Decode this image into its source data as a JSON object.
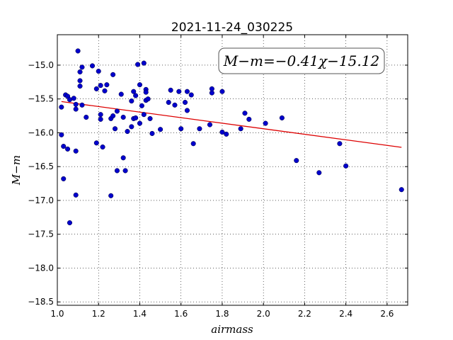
{
  "chart_data": {
    "type": "scatter",
    "title": "2021-11-24_030225",
    "xlabel": "airmass",
    "ylabel": "M−m",
    "annotation": "M−m=−0.41χ−15.12",
    "xlim": [
      1.0,
      2.7
    ],
    "ylim": [
      -18.55,
      -14.55
    ],
    "ylim_note": "y axis increases downward",
    "x_ticks": [
      1.0,
      1.2,
      1.4,
      1.6,
      1.8,
      2.0,
      2.2,
      2.4,
      2.6
    ],
    "x_tick_labels": [
      "1.0",
      "1.2",
      "1.4",
      "1.6",
      "1.8",
      "2.0",
      "2.2",
      "2.4",
      "2.6"
    ],
    "y_ticks": [
      -15.0,
      -15.5,
      -16.0,
      -16.5,
      -17.0,
      -17.5,
      -18.0,
      -18.5
    ],
    "y_tick_labels": [
      "−15.0",
      "−15.5",
      "−16.0",
      "−16.5",
      "−17.0",
      "−17.5",
      "−18.0",
      "−18.5"
    ],
    "grid": true,
    "point_color": "#0000cc",
    "fit_color": "#dd0000",
    "fit": {
      "slope": -0.41,
      "intercept": -15.12,
      "x_range": [
        1.02,
        2.67
      ]
    },
    "points": [
      {
        "x": 1.02,
        "y": -15.62
      },
      {
        "x": 1.02,
        "y": -16.03
      },
      {
        "x": 1.03,
        "y": -16.2
      },
      {
        "x": 1.03,
        "y": -16.68
      },
      {
        "x": 1.04,
        "y": -15.44
      },
      {
        "x": 1.05,
        "y": -15.46
      },
      {
        "x": 1.05,
        "y": -16.24
      },
      {
        "x": 1.06,
        "y": -17.33
      },
      {
        "x": 1.06,
        "y": -15.51
      },
      {
        "x": 1.08,
        "y": -15.49
      },
      {
        "x": 1.09,
        "y": -15.58
      },
      {
        "x": 1.09,
        "y": -15.65
      },
      {
        "x": 1.09,
        "y": -16.27
      },
      {
        "x": 1.09,
        "y": -16.92
      },
      {
        "x": 1.1,
        "y": -14.79
      },
      {
        "x": 1.11,
        "y": -15.23
      },
      {
        "x": 1.11,
        "y": -15.31
      },
      {
        "x": 1.11,
        "y": -15.1
      },
      {
        "x": 1.12,
        "y": -15.03
      },
      {
        "x": 1.12,
        "y": -15.59
      },
      {
        "x": 1.14,
        "y": -15.77
      },
      {
        "x": 1.17,
        "y": -15.01
      },
      {
        "x": 1.19,
        "y": -15.35
      },
      {
        "x": 1.19,
        "y": -16.15
      },
      {
        "x": 1.2,
        "y": -15.09
      },
      {
        "x": 1.21,
        "y": -15.3
      },
      {
        "x": 1.21,
        "y": -15.73
      },
      {
        "x": 1.21,
        "y": -15.8
      },
      {
        "x": 1.22,
        "y": -16.21
      },
      {
        "x": 1.23,
        "y": -15.38
      },
      {
        "x": 1.24,
        "y": -15.29
      },
      {
        "x": 1.26,
        "y": -16.93
      },
      {
        "x": 1.26,
        "y": -15.79
      },
      {
        "x": 1.27,
        "y": -15.75
      },
      {
        "x": 1.27,
        "y": -15.14
      },
      {
        "x": 1.28,
        "y": -15.94
      },
      {
        "x": 1.29,
        "y": -16.56
      },
      {
        "x": 1.29,
        "y": -15.68
      },
      {
        "x": 1.31,
        "y": -15.43
      },
      {
        "x": 1.32,
        "y": -16.37
      },
      {
        "x": 1.32,
        "y": -15.77
      },
      {
        "x": 1.33,
        "y": -16.56
      },
      {
        "x": 1.34,
        "y": -15.98
      },
      {
        "x": 1.36,
        "y": -15.91
      },
      {
        "x": 1.36,
        "y": -15.53
      },
      {
        "x": 1.37,
        "y": -15.39
      },
      {
        "x": 1.37,
        "y": -15.79
      },
      {
        "x": 1.38,
        "y": -15.45
      },
      {
        "x": 1.38,
        "y": -15.78
      },
      {
        "x": 1.39,
        "y": -14.99
      },
      {
        "x": 1.4,
        "y": -15.29
      },
      {
        "x": 1.4,
        "y": -15.86
      },
      {
        "x": 1.41,
        "y": -15.6
      },
      {
        "x": 1.42,
        "y": -15.73
      },
      {
        "x": 1.42,
        "y": -14.97
      },
      {
        "x": 1.43,
        "y": -15.36
      },
      {
        "x": 1.43,
        "y": -15.4
      },
      {
        "x": 1.43,
        "y": -15.52
      },
      {
        "x": 1.44,
        "y": -15.5
      },
      {
        "x": 1.45,
        "y": -15.79
      },
      {
        "x": 1.46,
        "y": -16.01
      },
      {
        "x": 1.5,
        "y": -15.95
      },
      {
        "x": 1.54,
        "y": -15.55
      },
      {
        "x": 1.55,
        "y": -15.37
      },
      {
        "x": 1.57,
        "y": -15.59
      },
      {
        "x": 1.59,
        "y": -15.39
      },
      {
        "x": 1.6,
        "y": -15.94
      },
      {
        "x": 1.62,
        "y": -15.55
      },
      {
        "x": 1.63,
        "y": -15.39
      },
      {
        "x": 1.63,
        "y": -15.67
      },
      {
        "x": 1.65,
        "y": -15.44
      },
      {
        "x": 1.66,
        "y": -16.16
      },
      {
        "x": 1.69,
        "y": -15.94
      },
      {
        "x": 1.74,
        "y": -15.88
      },
      {
        "x": 1.75,
        "y": -15.41
      },
      {
        "x": 1.75,
        "y": -15.35
      },
      {
        "x": 1.8,
        "y": -15.39
      },
      {
        "x": 1.8,
        "y": -15.99
      },
      {
        "x": 1.82,
        "y": -16.02
      },
      {
        "x": 1.89,
        "y": -15.94
      },
      {
        "x": 1.91,
        "y": -15.71
      },
      {
        "x": 1.93,
        "y": -15.8
      },
      {
        "x": 2.01,
        "y": -15.86
      },
      {
        "x": 2.09,
        "y": -15.78
      },
      {
        "x": 2.16,
        "y": -16.41
      },
      {
        "x": 2.27,
        "y": -16.59
      },
      {
        "x": 2.37,
        "y": -16.16
      },
      {
        "x": 2.4,
        "y": -16.49
      },
      {
        "x": 2.67,
        "y": -16.84
      }
    ]
  }
}
